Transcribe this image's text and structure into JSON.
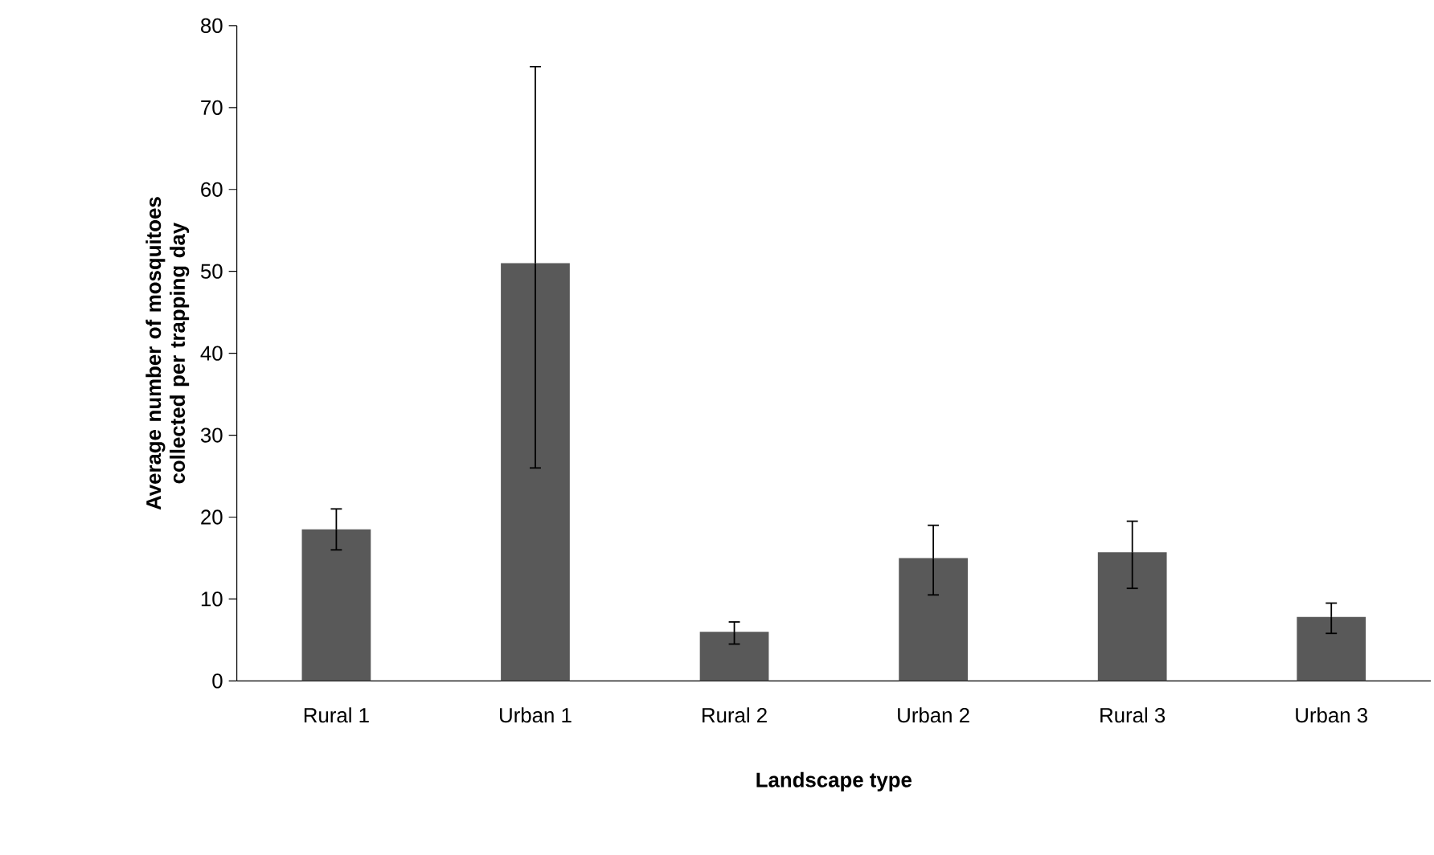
{
  "chart_data": {
    "type": "bar",
    "xlabel": "Landscape type",
    "ylabel": "Average number of mosquitoes collected per trapping day",
    "categories": [
      "Rural 1",
      "Urban 1",
      "Rural 2",
      "Urban 2",
      "Rural 3",
      "Urban 3"
    ],
    "values": [
      18.5,
      51,
      6,
      15,
      15.7,
      7.8
    ],
    "errors": [
      [
        16,
        21
      ],
      [
        26,
        75
      ],
      [
        4.5,
        7.2
      ],
      [
        10.5,
        19
      ],
      [
        11.3,
        19.5
      ],
      [
        5.8,
        9.5
      ]
    ],
    "color": "#595959",
    "ylim": [
      0,
      80
    ],
    "yticks": [
      0,
      10,
      20,
      30,
      40,
      50,
      60,
      70,
      80
    ],
    "grid": false
  }
}
